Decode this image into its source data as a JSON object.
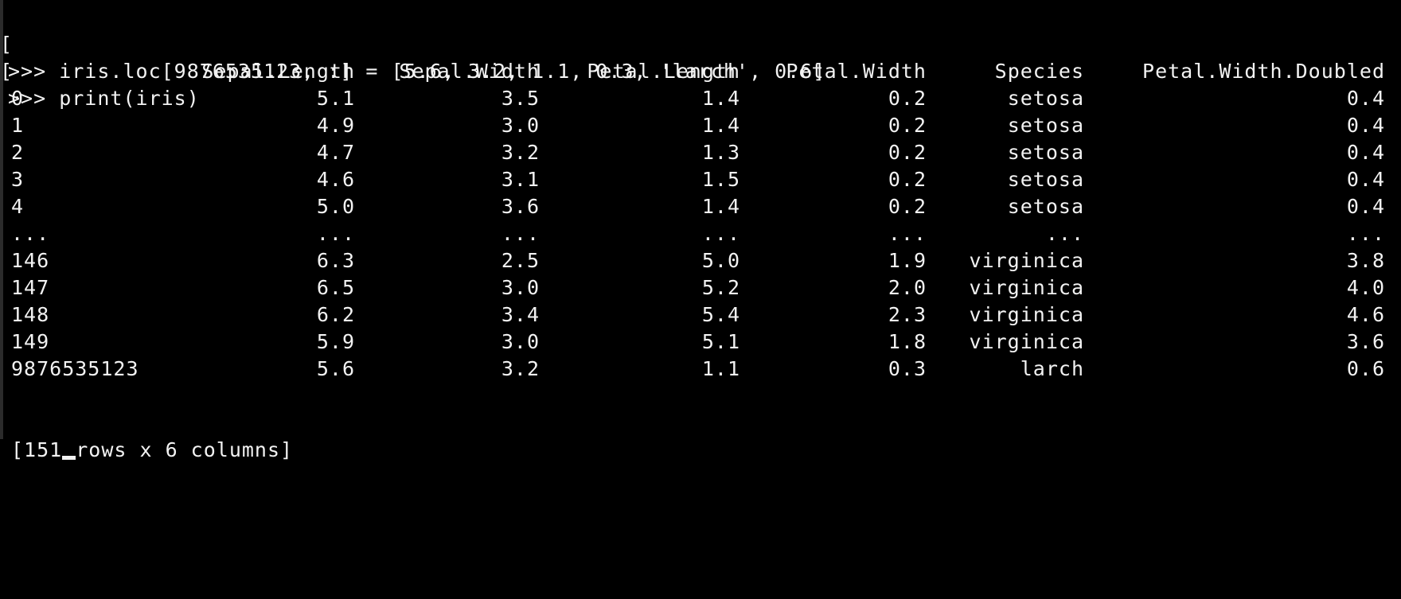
{
  "terminal": {
    "commands": [
      {
        "marker": "[",
        "text": ">>> iris.loc[9876535123, :] = [5.6, 3.2, 1.1, 0.3, 'larch', 0.6]"
      },
      {
        "marker": "[",
        "text": ">>> print(iris)"
      }
    ],
    "table": {
      "columns": [
        "Sepal.Length",
        "Sepal.Width",
        "Petal.Length",
        "Petal.Width",
        "Species",
        "Petal.Width.Doubled"
      ],
      "rows": [
        [
          "0",
          "5.1",
          "3.5",
          "1.4",
          "0.2",
          "setosa",
          "0.4"
        ],
        [
          "1",
          "4.9",
          "3.0",
          "1.4",
          "0.2",
          "setosa",
          "0.4"
        ],
        [
          "2",
          "4.7",
          "3.2",
          "1.3",
          "0.2",
          "setosa",
          "0.4"
        ],
        [
          "3",
          "4.6",
          "3.1",
          "1.5",
          "0.2",
          "setosa",
          "0.4"
        ],
        [
          "4",
          "5.0",
          "3.6",
          "1.4",
          "0.2",
          "setosa",
          "0.4"
        ],
        [
          "...",
          "...",
          "...",
          "...",
          "...",
          "...",
          "..."
        ],
        [
          "146",
          "6.3",
          "2.5",
          "5.0",
          "1.9",
          "virginica",
          "3.8"
        ],
        [
          "147",
          "6.5",
          "3.0",
          "5.2",
          "2.0",
          "virginica",
          "4.0"
        ],
        [
          "148",
          "6.2",
          "3.4",
          "5.4",
          "2.3",
          "virginica",
          "4.6"
        ],
        [
          "149",
          "5.9",
          "3.0",
          "5.1",
          "1.8",
          "virginica",
          "3.6"
        ],
        [
          "9876535123",
          "5.6",
          "3.2",
          "1.1",
          "0.3",
          "larch",
          "0.6"
        ]
      ]
    },
    "summary_prefix": "[151",
    "summary_suffix": "rows x 6 columns]"
  }
}
